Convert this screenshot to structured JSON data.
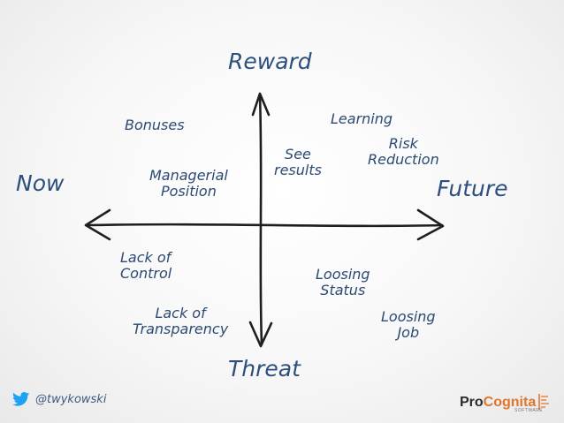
{
  "axes": {
    "top": "Reward",
    "bottom": "Threat",
    "left": "Now",
    "right": "Future"
  },
  "items": {
    "bonuses": "Bonuses",
    "learning": "Learning",
    "see_results_1": "See",
    "see_results_2": "results",
    "risk_reduction_1": "Risk",
    "risk_reduction_2": "Reduction",
    "managerial_1": "Managerial",
    "managerial_2": "Position",
    "lack_control_1": "Lack of",
    "lack_control_2": "Control",
    "loosing_status_1": "Loosing",
    "loosing_status_2": "Status",
    "lack_transparency_1": "Lack of",
    "lack_transparency_2": "Transparency",
    "loosing_job_1": "Loosing",
    "loosing_job_2": "Job"
  },
  "footer": {
    "handle": "@twykowski",
    "logo_pro": "Pro",
    "logo_cognita": "Cognita",
    "logo_sub": "SOFTWARE",
    "icon": "twitter-bird-icon"
  },
  "colors": {
    "ink": "#2c4a72",
    "axis_line": "#1e1e1e",
    "twitter": "#1da1f2",
    "brand_accent": "#e0762b"
  }
}
